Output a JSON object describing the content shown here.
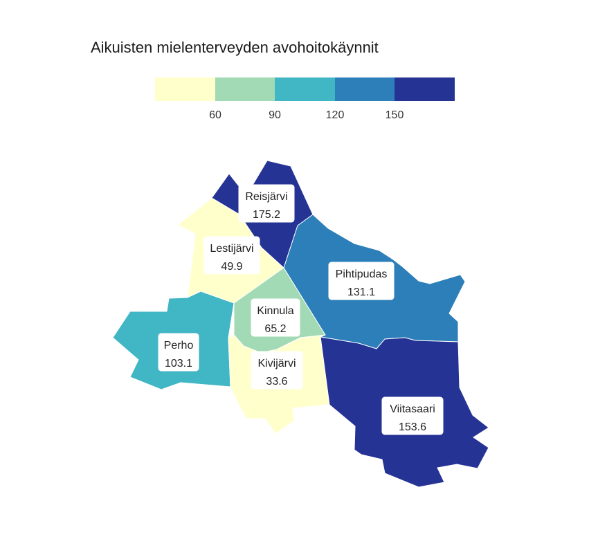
{
  "map": {
    "title": "Aikuisten mielenterveyden avohoitokäynnit",
    "legend": {
      "breaks": [
        60,
        90,
        120,
        150
      ],
      "tick_labels": [
        "60",
        "90",
        "120",
        "150"
      ],
      "colors": [
        "#ffffcc",
        "#a1dab4",
        "#41b6c4",
        "#2c7fb8",
        "#253494"
      ]
    },
    "regions": [
      {
        "name": "Reisjärvi",
        "value": 175.2,
        "value_label": "175.2",
        "color": "#253494"
      },
      {
        "name": "Lestijärvi",
        "value": 49.9,
        "value_label": "49.9",
        "color": "#ffffcc"
      },
      {
        "name": "Pihtipudas",
        "value": 131.1,
        "value_label": "131.1",
        "color": "#2c7fb8"
      },
      {
        "name": "Kinnula",
        "value": 65.2,
        "value_label": "65.2",
        "color": "#a1dab4"
      },
      {
        "name": "Perho",
        "value": 103.1,
        "value_label": "103.1",
        "color": "#41b6c4"
      },
      {
        "name": "Kivijärvi",
        "value": 33.6,
        "value_label": "33.6",
        "color": "#ffffcc"
      },
      {
        "name": "Viitasaari",
        "value": 153.6,
        "value_label": "153.6",
        "color": "#253494"
      }
    ]
  }
}
